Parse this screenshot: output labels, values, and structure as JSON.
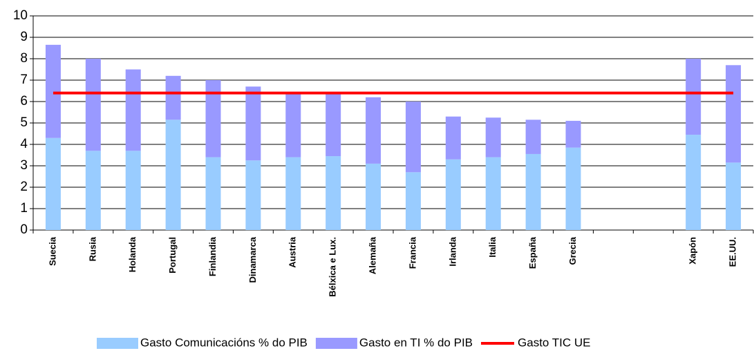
{
  "chart_data": {
    "type": "bar",
    "stacked": true,
    "categories": [
      "Suecia",
      "Rusia",
      "Holanda",
      "Portugal",
      "Finlandia",
      "Dinamarca",
      "Austria",
      "Bélxica e Lux.",
      "Alemaña",
      "Francia",
      "Irlanda",
      "Italia",
      "España",
      "Grecia",
      null,
      null,
      "Xapón",
      "EE.UU."
    ],
    "series": [
      {
        "name": "Gasto Comunicacións % do PIB",
        "color": "#99ccff",
        "values": [
          4.3,
          3.7,
          3.7,
          5.15,
          3.4,
          3.25,
          3.4,
          3.45,
          3.1,
          2.7,
          3.3,
          3.4,
          3.55,
          3.85,
          null,
          null,
          4.45,
          3.15
        ]
      },
      {
        "name": "Gasto en TI % do PIB",
        "color": "#9999ff",
        "values": [
          4.35,
          4.3,
          3.8,
          2.05,
          3.6,
          3.45,
          3.05,
          3.0,
          3.1,
          3.3,
          2.0,
          1.85,
          1.6,
          1.25,
          null,
          null,
          3.55,
          4.55
        ]
      },
      {
        "name": "Gasto TIC UE",
        "color": "#ff0000",
        "type": "line",
        "values": [
          6.4,
          6.4,
          6.4,
          6.4,
          6.4,
          6.4,
          6.4,
          6.4,
          6.4,
          6.4,
          6.4,
          6.4,
          6.4,
          6.4,
          6.4,
          6.4,
          6.4,
          6.4
        ]
      }
    ],
    "ylim": [
      0,
      10
    ],
    "yticks": [
      0,
      1,
      2,
      3,
      4,
      5,
      6,
      7,
      8,
      9,
      10
    ],
    "grid": true,
    "legend": "bottom"
  }
}
